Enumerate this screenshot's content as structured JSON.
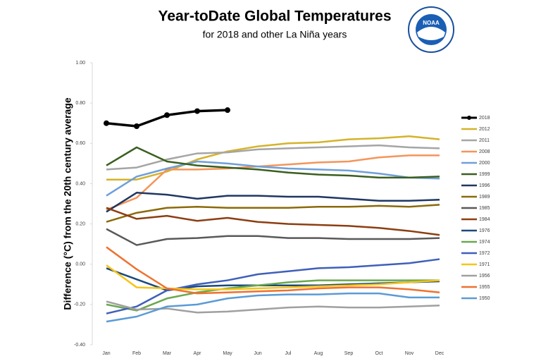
{
  "chart_data": {
    "type": "line",
    "title": "Year-toDate Global Temperatures",
    "subtitle": "for 2018 and other La Niña years",
    "logo": "NOAA",
    "y_label": "Difference (°C) from the 20th century average",
    "categories": [
      "Jan",
      "Feb",
      "Mar",
      "Apr",
      "May",
      "Jun",
      "Jul",
      "Aug",
      "Sep",
      "Oct",
      "Nov",
      "Dec"
    ],
    "ylim": [
      -0.4,
      1.0
    ],
    "yticks": [
      {
        "value": -0.4,
        "label": "-0.40"
      },
      {
        "value": -0.2,
        "label": "-0.20"
      },
      {
        "value": 0,
        "label": "0.00"
      },
      {
        "value": 0.2,
        "label": "0.20"
      },
      {
        "value": 0.4,
        "label": "0.40"
      },
      {
        "value": 0.6,
        "label": "0.60"
      },
      {
        "value": 0.8,
        "label": "0.80"
      },
      {
        "value": 1.0,
        "label": "1.00"
      }
    ],
    "grid": false,
    "legend": "right",
    "series": [
      {
        "name": "2018",
        "color": "#000000",
        "marker": true,
        "values": [
          0.7,
          0.685,
          0.74,
          0.76,
          0.765,
          null,
          null,
          null,
          null,
          null,
          null,
          null
        ]
      },
      {
        "name": "2012",
        "color": "#d4b32a",
        "values": [
          0.42,
          0.42,
          0.46,
          0.52,
          0.56,
          0.585,
          0.6,
          0.605,
          0.62,
          0.625,
          0.635,
          0.62
        ]
      },
      {
        "name": "2011",
        "color": "#a5a5a5",
        "values": [
          0.47,
          0.48,
          0.52,
          0.55,
          0.555,
          0.57,
          0.575,
          0.58,
          0.585,
          0.59,
          0.58,
          0.575
        ]
      },
      {
        "name": "2008",
        "color": "#f4955a",
        "values": [
          0.27,
          0.33,
          0.47,
          0.47,
          0.475,
          0.485,
          0.495,
          0.505,
          0.51,
          0.53,
          0.54,
          0.54
        ]
      },
      {
        "name": "2000",
        "color": "#6f9fd8",
        "values": [
          0.34,
          0.435,
          0.475,
          0.51,
          0.5,
          0.485,
          0.475,
          0.47,
          0.465,
          0.45,
          0.43,
          0.425
        ]
      },
      {
        "name": "1999",
        "color": "#3a5f1f",
        "values": [
          0.49,
          0.58,
          0.51,
          0.49,
          0.48,
          0.47,
          0.455,
          0.445,
          0.44,
          0.43,
          0.43,
          0.435
        ]
      },
      {
        "name": "1996",
        "color": "#1f3763",
        "values": [
          0.26,
          0.355,
          0.345,
          0.325,
          0.34,
          0.34,
          0.335,
          0.335,
          0.325,
          0.315,
          0.315,
          0.32
        ]
      },
      {
        "name": "1989",
        "color": "#8b6a0a",
        "values": [
          0.21,
          0.255,
          0.28,
          0.285,
          0.28,
          0.28,
          0.28,
          0.285,
          0.285,
          0.29,
          0.285,
          0.295
        ]
      },
      {
        "name": "1985",
        "color": "#595959",
        "values": [
          0.175,
          0.095,
          0.125,
          0.13,
          0.14,
          0.14,
          0.13,
          0.13,
          0.125,
          0.125,
          0.125,
          0.13
        ]
      },
      {
        "name": "1984",
        "color": "#8c3e12",
        "values": [
          0.28,
          0.225,
          0.24,
          0.215,
          0.23,
          0.21,
          0.2,
          0.195,
          0.19,
          0.18,
          0.165,
          0.145
        ]
      },
      {
        "name": "1976",
        "color": "#1c4a7a",
        "values": [
          -0.02,
          -0.075,
          -0.13,
          -0.11,
          -0.105,
          -0.105,
          -0.105,
          -0.105,
          -0.1,
          -0.095,
          -0.09,
          -0.085
        ]
      },
      {
        "name": "1974",
        "color": "#6aa84f",
        "values": [
          -0.2,
          -0.23,
          -0.17,
          -0.14,
          -0.12,
          -0.105,
          -0.09,
          -0.08,
          -0.08,
          -0.08,
          -0.08,
          -0.08
        ]
      },
      {
        "name": "1972",
        "color": "#3f5fb9",
        "values": [
          -0.245,
          -0.21,
          -0.13,
          -0.1,
          -0.08,
          -0.05,
          -0.035,
          -0.02,
          -0.015,
          -0.005,
          0.005,
          0.025
        ]
      },
      {
        "name": "1971",
        "color": "#f5c518",
        "values": [
          -0.005,
          -0.115,
          -0.12,
          -0.125,
          -0.125,
          -0.12,
          -0.115,
          -0.11,
          -0.105,
          -0.1,
          -0.09,
          -0.08
        ]
      },
      {
        "name": "1956",
        "color": "#a0a0a0",
        "values": [
          -0.185,
          -0.225,
          -0.22,
          -0.24,
          -0.235,
          -0.225,
          -0.215,
          -0.21,
          -0.215,
          -0.215,
          -0.21,
          -0.205
        ]
      },
      {
        "name": "1955",
        "color": "#ee7230",
        "values": [
          0.085,
          -0.025,
          -0.12,
          -0.145,
          -0.14,
          -0.135,
          -0.13,
          -0.12,
          -0.115,
          -0.115,
          -0.125,
          -0.14
        ]
      },
      {
        "name": "1950",
        "color": "#5b9bd5",
        "values": [
          -0.285,
          -0.26,
          -0.21,
          -0.2,
          -0.17,
          -0.155,
          -0.15,
          -0.15,
          -0.145,
          -0.145,
          -0.165,
          -0.165
        ]
      }
    ]
  }
}
